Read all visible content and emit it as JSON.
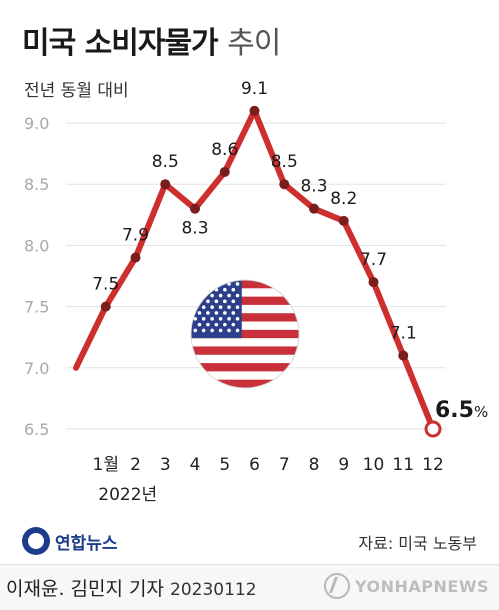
{
  "header": {
    "title_main": "미국 소비자물가",
    "title_sub": "추이",
    "unit_label": "전년 동월 대비"
  },
  "chart_data": {
    "type": "line",
    "ylim": [
      6.5,
      9.0
    ],
    "y_ticks": [
      "9.0",
      "8.5",
      "8.0",
      "7.5",
      "7.0",
      "6.5"
    ],
    "x_labels": [
      "",
      "1월",
      "2",
      "3",
      "4",
      "5",
      "6",
      "7",
      "8",
      "9",
      "10",
      "11",
      "12"
    ],
    "year_label": "2022년",
    "values": [
      7.0,
      7.5,
      7.9,
      8.5,
      8.3,
      8.6,
      9.1,
      8.5,
      8.3,
      8.2,
      7.7,
      7.1,
      6.5
    ],
    "data_labels": [
      "",
      "7.5",
      "7.9",
      "8.5",
      "8.3",
      "8.6",
      "9.1",
      "8.5",
      "8.3",
      "8.2",
      "7.7",
      "7.1",
      "6.5"
    ],
    "last_label_unit": "%",
    "grid": false,
    "line_color": "#cd2e2e",
    "gridline_color": "#e3e3e3"
  },
  "decoration": {
    "flag_icon": "us-flag-icon"
  },
  "footer": {
    "logo_text": "연합뉴스",
    "source": "자료: 미국 노동부",
    "credit": "이재윤. 김민지 기자",
    "date": "20230112",
    "watermark": "YONHAPNEWS"
  }
}
